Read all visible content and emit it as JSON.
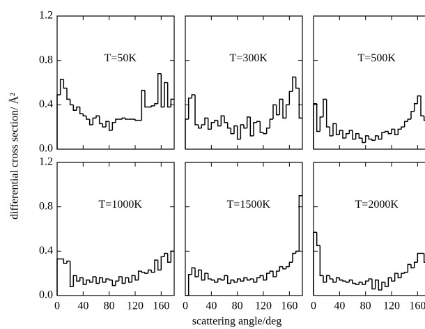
{
  "figure": {
    "ylabel": "differential cross section/ Å²",
    "xlabel": "scattering angle/deg"
  },
  "chart_data": [
    {
      "type": "histogram",
      "annotation": "T=50K",
      "color": "#000000",
      "bins": [
        0,
        5,
        10,
        15,
        20,
        25,
        30,
        35,
        40,
        45,
        50,
        55,
        60,
        65,
        70,
        75,
        80,
        85,
        90,
        95,
        100,
        105,
        110,
        115,
        120,
        125,
        130,
        135,
        140,
        145,
        150,
        155,
        160,
        165,
        170,
        175,
        180
      ],
      "values": [
        0.49,
        0.63,
        0.55,
        0.45,
        0.4,
        0.35,
        0.38,
        0.32,
        0.3,
        0.27,
        0.22,
        0.28,
        0.3,
        0.23,
        0.2,
        0.25,
        0.17,
        0.24,
        0.27,
        0.27,
        0.28,
        0.27,
        0.27,
        0.27,
        0.26,
        0.26,
        0.53,
        0.38,
        0.38,
        0.39,
        0.41,
        0.68,
        0.38,
        0.6,
        0.38,
        0.45
      ],
      "xlim": [
        0,
        180
      ],
      "ylim": [
        0,
        1.2
      ],
      "xticks": [
        0,
        40,
        80,
        120,
        160
      ],
      "yticks": [
        {
          "value": 0,
          "label": "0.0"
        },
        {
          "value": 0.4,
          "label": "0.4"
        },
        {
          "value": 0.8,
          "label": "0.8"
        },
        {
          "value": 1.2,
          "label": "1.2"
        }
      ]
    },
    {
      "type": "histogram",
      "annotation": "T=300K",
      "color": "#000000",
      "bins": [
        0,
        5,
        10,
        15,
        20,
        25,
        30,
        35,
        40,
        45,
        50,
        55,
        60,
        65,
        70,
        75,
        80,
        85,
        90,
        95,
        100,
        105,
        110,
        115,
        120,
        125,
        130,
        135,
        140,
        145,
        150,
        155,
        160,
        165,
        170,
        175,
        180
      ],
      "values": [
        0.27,
        0.46,
        0.49,
        0.22,
        0.19,
        0.22,
        0.28,
        0.18,
        0.24,
        0.26,
        0.21,
        0.3,
        0.24,
        0.19,
        0.14,
        0.21,
        0.09,
        0.22,
        0.19,
        0.29,
        0.12,
        0.24,
        0.25,
        0.15,
        0.14,
        0.19,
        0.27,
        0.4,
        0.31,
        0.45,
        0.28,
        0.4,
        0.52,
        0.65,
        0.55,
        0.28
      ],
      "xlim": [
        0,
        180
      ],
      "ylim": [
        0,
        1.2
      ],
      "xticks": [
        0,
        40,
        80,
        120,
        160
      ],
      "yticks": [
        {
          "value": 0,
          "label": "0.0"
        },
        {
          "value": 0.4,
          "label": "0.4"
        },
        {
          "value": 0.8,
          "label": "0.8"
        },
        {
          "value": 1.2,
          "label": "1.2"
        }
      ]
    },
    {
      "type": "histogram",
      "annotation": "T=500K",
      "color": "#000000",
      "bins": [
        0,
        5,
        10,
        15,
        20,
        25,
        30,
        35,
        40,
        45,
        50,
        55,
        60,
        65,
        70,
        75,
        80,
        85,
        90,
        95,
        100,
        105,
        110,
        115,
        120,
        125,
        130,
        135,
        140,
        145,
        150,
        155,
        160,
        165,
        170,
        175,
        180
      ],
      "values": [
        0.41,
        0.16,
        0.29,
        0.45,
        0.2,
        0.12,
        0.23,
        0.13,
        0.17,
        0.1,
        0.14,
        0.17,
        0.09,
        0.14,
        0.1,
        0.06,
        0.12,
        0.09,
        0.08,
        0.12,
        0.09,
        0.15,
        0.16,
        0.14,
        0.18,
        0.13,
        0.18,
        0.2,
        0.25,
        0.27,
        0.34,
        0.41,
        0.48,
        0.3,
        0.26,
        0.24
      ],
      "xlim": [
        0,
        180
      ],
      "ylim": [
        0,
        1.2
      ],
      "xticks": [
        0,
        40,
        80,
        120,
        160
      ],
      "yticks": [
        {
          "value": 0,
          "label": "0.0"
        },
        {
          "value": 0.4,
          "label": "0.4"
        },
        {
          "value": 0.8,
          "label": "0.8"
        },
        {
          "value": 1.2,
          "label": "1.2"
        }
      ]
    },
    {
      "type": "histogram",
      "annotation": "T=1000K",
      "color": "#000000",
      "bins": [
        0,
        5,
        10,
        15,
        20,
        25,
        30,
        35,
        40,
        45,
        50,
        55,
        60,
        65,
        70,
        75,
        80,
        85,
        90,
        95,
        100,
        105,
        110,
        115,
        120,
        125,
        130,
        135,
        140,
        145,
        150,
        155,
        160,
        165,
        170,
        175,
        180
      ],
      "values": [
        0.33,
        0.33,
        0.29,
        0.31,
        0.08,
        0.18,
        0.13,
        0.16,
        0.1,
        0.14,
        0.12,
        0.17,
        0.11,
        0.16,
        0.12,
        0.15,
        0.14,
        0.09,
        0.13,
        0.17,
        0.11,
        0.16,
        0.12,
        0.18,
        0.14,
        0.22,
        0.21,
        0.2,
        0.23,
        0.21,
        0.32,
        0.23,
        0.35,
        0.38,
        0.3,
        0.4
      ],
      "xlim": [
        0,
        180
      ],
      "ylim": [
        0,
        1.2
      ],
      "xticks": [
        0,
        40,
        80,
        120,
        160
      ],
      "yticks": [
        {
          "value": 0,
          "label": "0.0"
        },
        {
          "value": 0.4,
          "label": "0.4"
        },
        {
          "value": 0.8,
          "label": "0.8"
        },
        {
          "value": 1.2,
          "label": "1.2"
        }
      ]
    },
    {
      "type": "histogram",
      "annotation": "T=1500K",
      "color": "#000000",
      "bins": [
        0,
        5,
        10,
        15,
        20,
        25,
        30,
        35,
        40,
        45,
        50,
        55,
        60,
        65,
        70,
        75,
        80,
        85,
        90,
        95,
        100,
        105,
        110,
        115,
        120,
        125,
        130,
        135,
        140,
        145,
        150,
        155,
        160,
        165,
        170,
        175,
        180
      ],
      "values": [
        0.0,
        0.19,
        0.25,
        0.17,
        0.23,
        0.14,
        0.2,
        0.15,
        0.14,
        0.12,
        0.15,
        0.14,
        0.18,
        0.11,
        0.14,
        0.12,
        0.15,
        0.13,
        0.16,
        0.14,
        0.15,
        0.12,
        0.16,
        0.18,
        0.14,
        0.2,
        0.22,
        0.17,
        0.22,
        0.26,
        0.24,
        0.26,
        0.3,
        0.38,
        0.4,
        0.9
      ],
      "xlim": [
        0,
        180
      ],
      "ylim": [
        0,
        1.2
      ],
      "xticks": [
        0,
        40,
        80,
        120,
        160
      ],
      "yticks": [
        {
          "value": 0,
          "label": "0.0"
        },
        {
          "value": 0.4,
          "label": "0.4"
        },
        {
          "value": 0.8,
          "label": "0.8"
        },
        {
          "value": 1.2,
          "label": "1.2"
        }
      ]
    },
    {
      "type": "histogram",
      "annotation": "T=2000K",
      "color": "#000000",
      "bins": [
        0,
        5,
        10,
        15,
        20,
        25,
        30,
        35,
        40,
        45,
        50,
        55,
        60,
        65,
        70,
        75,
        80,
        85,
        90,
        95,
        100,
        105,
        110,
        115,
        120,
        125,
        130,
        135,
        140,
        145,
        150,
        155,
        160,
        165,
        170,
        175,
        180
      ],
      "values": [
        0.57,
        0.45,
        0.18,
        0.12,
        0.18,
        0.15,
        0.12,
        0.16,
        0.14,
        0.13,
        0.12,
        0.14,
        0.11,
        0.1,
        0.12,
        0.1,
        0.13,
        0.15,
        0.06,
        0.14,
        0.05,
        0.12,
        0.08,
        0.16,
        0.13,
        0.2,
        0.16,
        0.2,
        0.21,
        0.28,
        0.25,
        0.3,
        0.38,
        0.38,
        0.3,
        0.28
      ],
      "xlim": [
        0,
        180
      ],
      "ylim": [
        0,
        1.2
      ],
      "xticks": [
        0,
        40,
        80,
        120,
        160
      ],
      "yticks": [
        {
          "value": 0,
          "label": "0.0"
        },
        {
          "value": 0.4,
          "label": "0.4"
        },
        {
          "value": 0.8,
          "label": "0.8"
        },
        {
          "value": 1.2,
          "label": "1.2"
        }
      ]
    }
  ]
}
